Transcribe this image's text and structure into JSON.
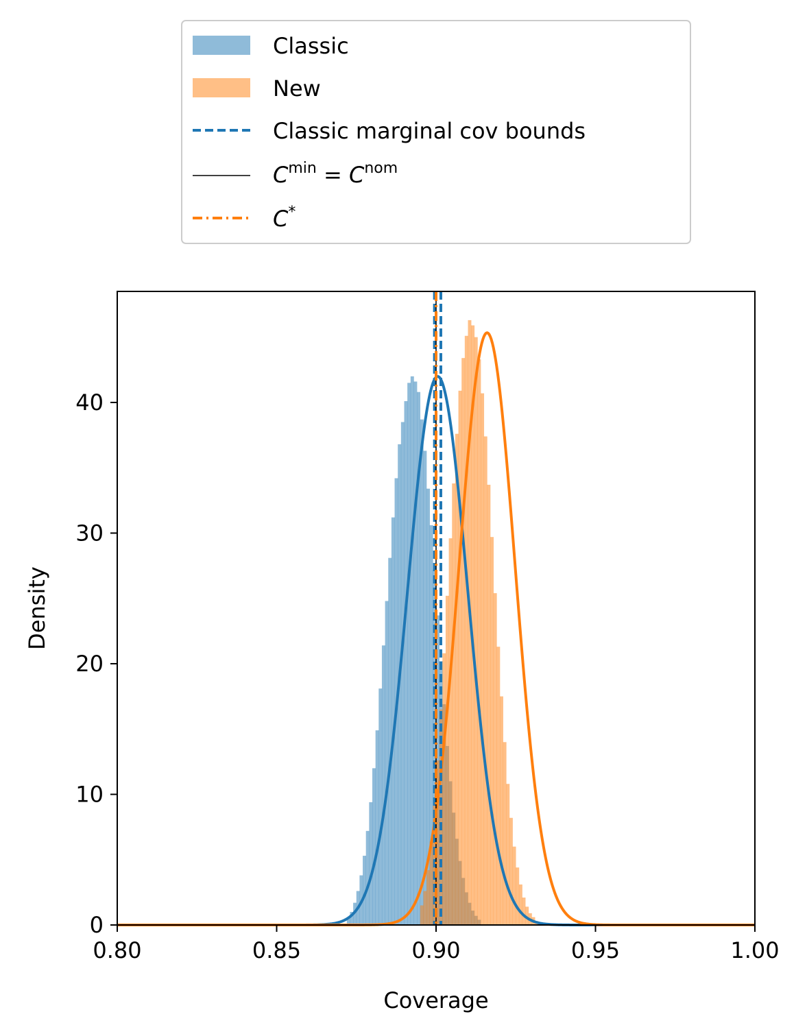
{
  "chart_data": {
    "type": "histogram",
    "title": "",
    "xlabel": "Coverage",
    "ylabel": "Density",
    "xlim": [
      0.8,
      1.0
    ],
    "ylim": [
      0,
      48.5
    ],
    "xticks": [
      "0.80",
      "0.85",
      "0.90",
      "0.95",
      "1.00"
    ],
    "yticks": [
      "0",
      "10",
      "20",
      "30",
      "40"
    ],
    "grid": false,
    "legend_position": "above plot, centered",
    "legend": [
      {
        "key": "classic",
        "label": "Classic",
        "kind": "patch"
      },
      {
        "key": "new",
        "label": "New",
        "kind": "patch"
      },
      {
        "key": "bounds",
        "label": "Classic marginal cov bounds",
        "kind": "dashed-line"
      },
      {
        "key": "cmin",
        "label": "C^min = C^nom",
        "kind": "solid-line"
      },
      {
        "key": "cstar",
        "label": "C*",
        "kind": "dashdot-line"
      }
    ],
    "series": [
      {
        "name": "Classic",
        "color": "#1f77b4",
        "histogram_alpha": 0.5,
        "bin_width": 0.001,
        "bin_start": 0.872,
        "density": [
          0.5,
          1.0,
          1.7,
          2.6,
          3.8,
          5.3,
          7.2,
          9.4,
          12.0,
          14.9,
          18.1,
          21.4,
          24.8,
          28.1,
          31.2,
          34.2,
          36.8,
          38.5,
          40.1,
          41.5,
          42.0,
          41.6,
          40.8,
          38.7,
          36.3,
          33.4,
          30.6,
          27.2,
          23.7,
          20.2,
          16.9,
          13.7,
          11.0,
          8.6,
          6.6,
          4.9,
          3.6,
          2.5,
          1.7,
          1.1,
          0.7,
          0.4
        ],
        "fit_mean": 0.9005,
        "fit_sd": 0.0095
      },
      {
        "name": "New",
        "color": "#ff7f0e",
        "histogram_alpha": 0.5,
        "bin_width": 0.001,
        "bin_start": 0.895,
        "density": [
          1.5,
          2.6,
          4.2,
          6.4,
          9.2,
          12.6,
          16.5,
          20.8,
          25.2,
          29.6,
          33.8,
          37.6,
          40.9,
          43.4,
          45.1,
          46.3,
          45.9,
          45.0,
          43.3,
          40.7,
          37.4,
          33.7,
          29.7,
          25.4,
          21.3,
          17.5,
          14.0,
          10.8,
          8.2,
          6.0,
          4.4,
          3.1,
          2.1,
          1.4,
          0.9,
          0.6,
          0.3,
          0.2,
          0.1,
          0.1,
          0.05,
          0.02,
          0.01,
          0.01,
          0.0,
          0.0
        ],
        "fit_mean": 0.916,
        "fit_sd": 0.0088
      }
    ],
    "vertical_lines": [
      {
        "key": "bounds",
        "x": [
          0.8995,
          0.9015
        ],
        "style": "dashed",
        "color": "#1f77b4"
      },
      {
        "key": "cmin",
        "x": [
          0.9
        ],
        "style": "solid",
        "color": "#000000"
      },
      {
        "key": "cstar",
        "x": [
          0.9
        ],
        "style": "dashdot",
        "color": "#ff7f0e"
      }
    ]
  }
}
